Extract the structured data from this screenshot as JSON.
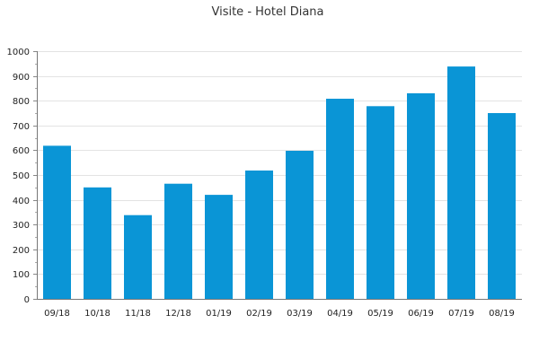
{
  "chart_data": {
    "type": "bar",
    "title": "Visite - Hotel Diana",
    "xlabel": "",
    "ylabel": "",
    "categories": [
      "09/18",
      "10/18",
      "11/18",
      "12/18",
      "01/19",
      "02/19",
      "03/19",
      "04/19",
      "05/19",
      "06/19",
      "07/19",
      "08/19"
    ],
    "values": [
      618,
      450,
      338,
      465,
      420,
      518,
      598,
      808,
      778,
      830,
      938,
      750
    ],
    "ylim": [
      0,
      1000
    ],
    "yticks": [
      0,
      100,
      200,
      300,
      400,
      500,
      600,
      700,
      800,
      900,
      1000
    ],
    "grid": true,
    "legend": "none",
    "bar_color": "#0a95d6"
  }
}
